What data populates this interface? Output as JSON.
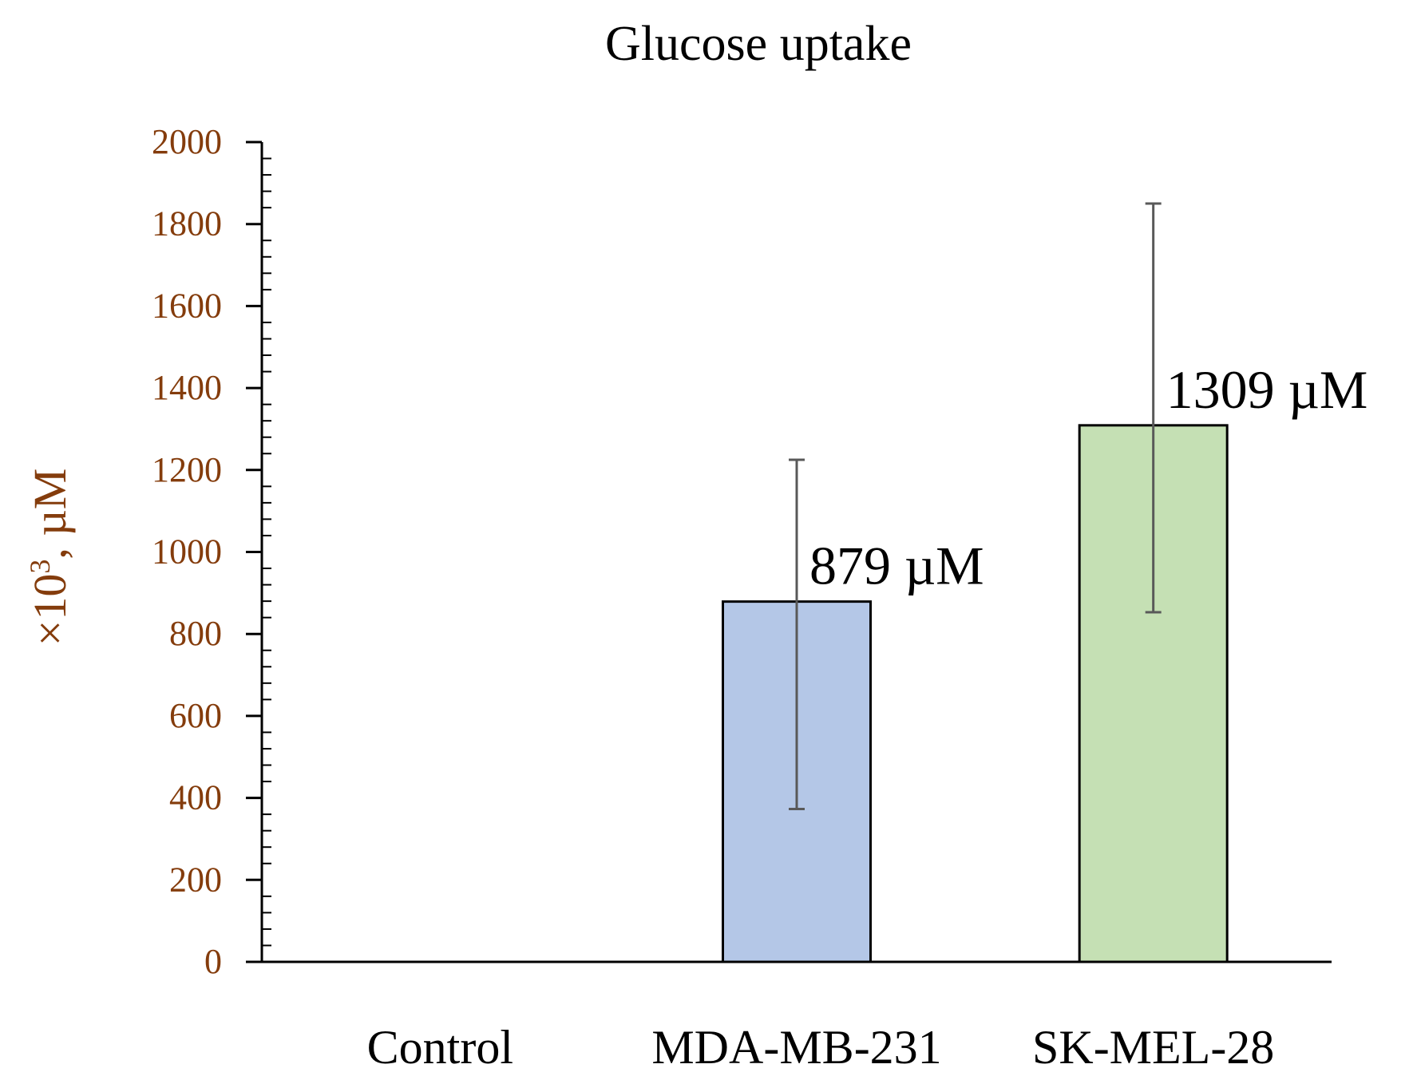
{
  "chart_data": {
    "type": "bar",
    "title": "Glucose uptake",
    "xlabel": "",
    "ylabel": "×10³, µM",
    "ylim": [
      0,
      2000
    ],
    "y_ticks": [
      "0",
      "200",
      "400",
      "600",
      "800",
      "1000",
      "1200",
      "1400",
      "1600",
      "1800",
      "2000"
    ],
    "grid": false,
    "categories": [
      "Control",
      "MDA-MB-231",
      "SK-MEL-28"
    ],
    "values": [
      0,
      879,
      1309
    ],
    "error_low": [
      null,
      373,
      853
    ],
    "error_high": [
      null,
      1225,
      1850
    ],
    "data_labels": [
      "",
      "879 µM",
      "1309 µM"
    ],
    "bar_colors": [
      "#b4c7e7",
      "#b4c7e7",
      "#c5e0b4"
    ],
    "ylabel_color": "#843c0c",
    "tick_color": "#843c0c"
  }
}
